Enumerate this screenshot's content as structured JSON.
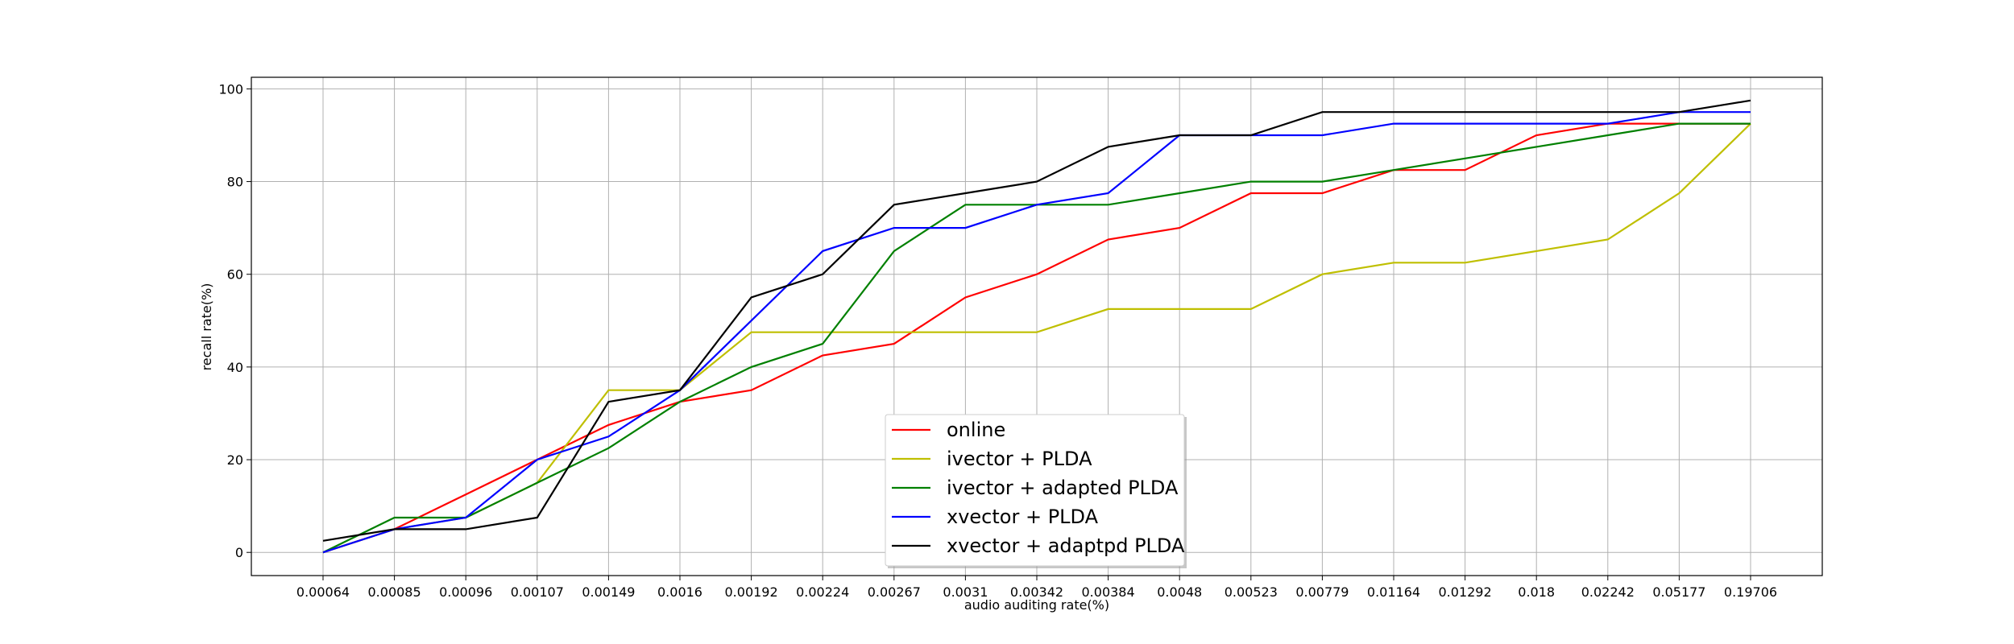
{
  "chart_data": {
    "type": "line",
    "xlabel": "audio auditing rate(%)",
    "ylabel": "recall rate(%)",
    "x": [
      "0.00064",
      "0.00085",
      "0.00096",
      "0.00107",
      "0.00149",
      "0.0016",
      "0.00192",
      "0.00224",
      "0.00267",
      "0.0031",
      "0.00342",
      "0.00384",
      "0.0048",
      "0.00523",
      "0.00779",
      "0.01164",
      "0.01292",
      "0.018",
      "0.02242",
      "0.05177",
      "0.19706"
    ],
    "ylim": [
      -5,
      102.5
    ],
    "yticks": [
      0,
      20,
      40,
      60,
      80,
      100
    ],
    "grid": true,
    "legend_position": "lower center",
    "series": [
      {
        "name": "online",
        "color": "#ff0000",
        "values": [
          0,
          5,
          12.5,
          20,
          27.5,
          32.5,
          35,
          42.5,
          45,
          55,
          60,
          67.5,
          70,
          77.5,
          77.5,
          82.5,
          82.5,
          90,
          92.5,
          92.5,
          92.5
        ]
      },
      {
        "name": "ivector + PLDA",
        "color": "#bfbf00",
        "values": [
          0,
          5,
          7.5,
          15,
          35,
          35,
          47.5,
          47.5,
          47.5,
          47.5,
          47.5,
          52.5,
          52.5,
          52.5,
          60,
          62.5,
          62.5,
          65,
          67.5,
          77.5,
          92.5
        ]
      },
      {
        "name": "ivector + adapted PLDA",
        "color": "#008000",
        "values": [
          0,
          7.5,
          7.5,
          15,
          22.5,
          32.5,
          40,
          45,
          65,
          75,
          75,
          75,
          77.5,
          80,
          80,
          82.5,
          85,
          87.5,
          90,
          92.5,
          92.5
        ]
      },
      {
        "name": "xvector + PLDA",
        "color": "#0000ff",
        "values": [
          0,
          5,
          7.5,
          20,
          25,
          35,
          50,
          65,
          70,
          70,
          75,
          77.5,
          90,
          90,
          90,
          92.5,
          92.5,
          92.5,
          92.5,
          95,
          95
        ]
      },
      {
        "name": "xvector + adaptpd PLDA",
        "color": "#000000",
        "values": [
          2.5,
          5,
          5,
          7.5,
          32.5,
          35,
          55,
          60,
          75,
          77.5,
          80,
          87.5,
          90,
          90,
          95,
          95,
          95,
          95,
          95,
          95,
          97.5
        ]
      }
    ]
  }
}
